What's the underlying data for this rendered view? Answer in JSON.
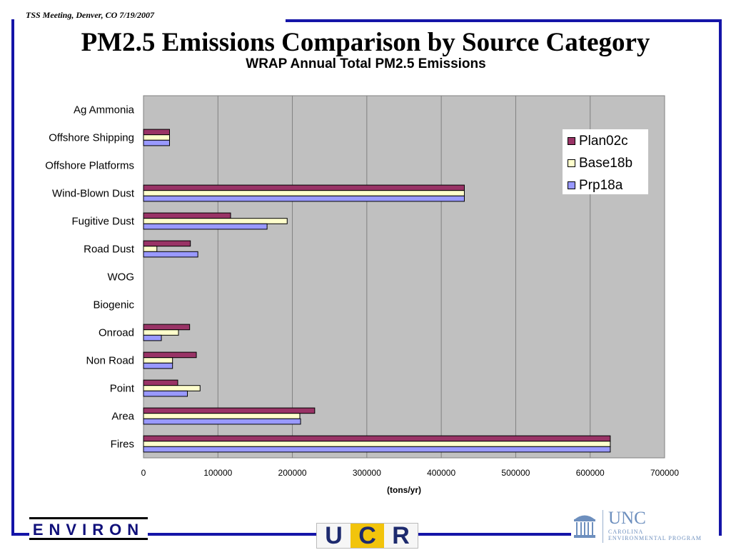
{
  "header": {
    "meeting": "TSS Meeting, Denver, CO  7/19/2007",
    "title": "PM2.5 Emissions Comparison by Source Category"
  },
  "legend": {
    "items": [
      {
        "label": "Plan02c",
        "color": "#993366"
      },
      {
        "label": "Base18b",
        "color": "#ffffcc"
      },
      {
        "label": "Prp18a",
        "color": "#9999ff"
      }
    ]
  },
  "chart_data": {
    "type": "bar",
    "orientation": "horizontal",
    "title": "WRAP Annual Total PM2.5 Emissions",
    "xlabel": "(tons/yr)",
    "ylabel": "",
    "xlim": [
      0,
      700000
    ],
    "x_ticks": [
      "0",
      "100000",
      "200000",
      "300000",
      "400000",
      "500000",
      "600000",
      "700000"
    ],
    "grid": "vertical",
    "plot_background": "#c0c0c0",
    "legend_position": "top-right",
    "categories": [
      "Ag Ammonia",
      "Offshore Shipping",
      "Offshore Platforms",
      "Wind-Blown Dust",
      "Fugitive Dust",
      "Road Dust",
      "WOG",
      "Biogenic",
      "Onroad",
      "Non Road",
      "Point",
      "Area",
      "Fires"
    ],
    "series": [
      {
        "name": "Plan02c",
        "color": "#993366",
        "values": [
          0,
          35000,
          0,
          431000,
          117000,
          63000,
          0,
          0,
          62000,
          71000,
          46000,
          230000,
          627000
        ]
      },
      {
        "name": "Base18b",
        "color": "#ffffcc",
        "values": [
          0,
          35000,
          0,
          431000,
          193000,
          18000,
          0,
          0,
          47000,
          39000,
          76000,
          210000,
          627000
        ]
      },
      {
        "name": "Prp18a",
        "color": "#9999ff",
        "values": [
          0,
          35000,
          0,
          431000,
          166000,
          73000,
          0,
          0,
          24000,
          39000,
          59000,
          211000,
          627000
        ]
      }
    ]
  },
  "logos": {
    "environ": "ENVIRON",
    "ucr": [
      "U",
      "C",
      "R"
    ],
    "unc_name": "UNC",
    "unc_program": "CAROLINA\nENVIRONMENTAL PROGRAM"
  }
}
